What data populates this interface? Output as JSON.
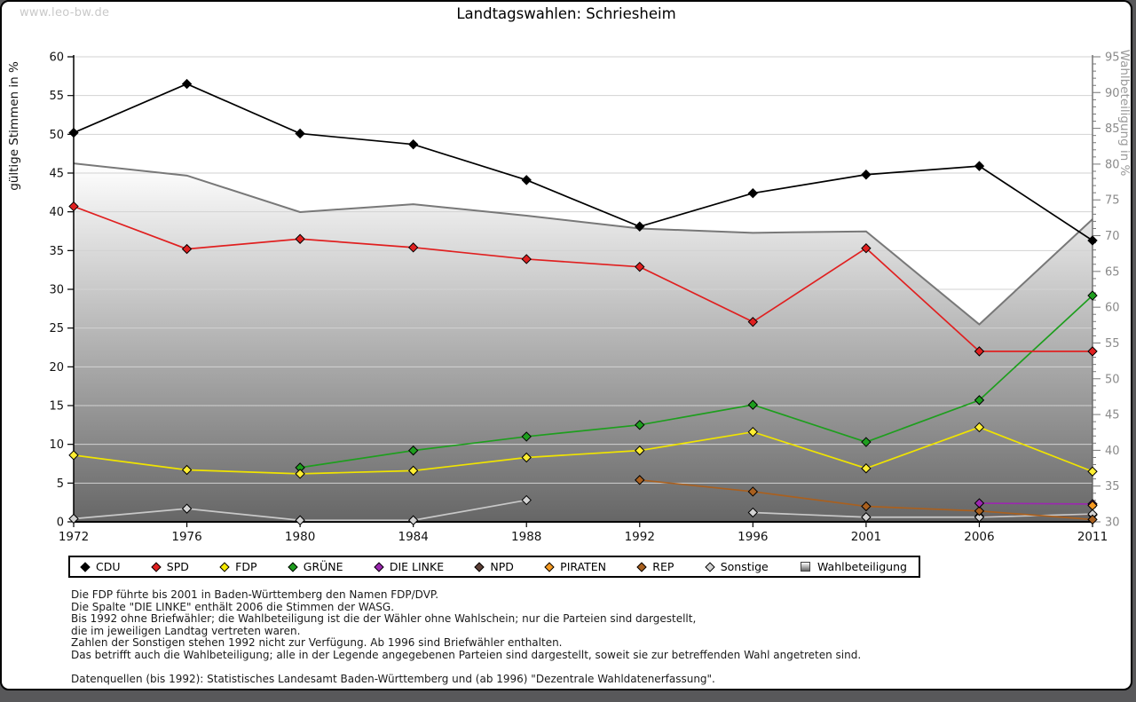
{
  "watermark": "www.leo-bw.de",
  "title": "Landtagswahlen: Schriesheim",
  "legend": {
    "items": [
      {
        "label": "CDU",
        "marker": "diamond",
        "color": "#000000"
      },
      {
        "label": "SPD",
        "marker": "diamond",
        "color": "#e02020"
      },
      {
        "label": "FDP",
        "marker": "diamond",
        "color": "#f6ea00"
      },
      {
        "label": "GRÜNE",
        "marker": "diamond",
        "color": "#1e9e1e"
      },
      {
        "label": "DIE LINKE",
        "marker": "diamond",
        "color": "#9c27b0"
      },
      {
        "label": "NPD",
        "marker": "diamond",
        "color": "#5d4037"
      },
      {
        "label": "PIRATEN",
        "marker": "diamond",
        "color": "#f59a23"
      },
      {
        "label": "REP",
        "marker": "diamond",
        "color": "#a9601f"
      },
      {
        "label": "Sonstige",
        "marker": "diamond",
        "color": "#d3d3d3"
      },
      {
        "label": "Wahlbeteiligung",
        "marker": "square",
        "color": "gradient"
      }
    ]
  },
  "footnotes": [
    "Die FDP führte bis 2001 in Baden-Württemberg den Namen FDP/DVP.",
    "Die Spalte \"DIE LINKE\" enthält 2006 die Stimmen der WASG.",
    "Bis 1992 ohne Briefwähler; die Wahlbeteiligung ist die der Wähler ohne Wahlschein; nur die Parteien sind dargestellt,",
    "die im jeweiligen Landtag vertreten waren.",
    "Zahlen der Sonstigen stehen 1992 nicht zur Verfügung. Ab 1996 sind Briefwähler enthalten.",
    "Das betrifft auch die Wahlbeteiligung; alle in der Legende angegebenen Parteien sind dargestellt, soweit sie zur betreffenden Wahl angetreten sind."
  ],
  "source": "Datenquellen (bis 1992): Statistisches Landesamt Baden-Württemberg und (ab 1996) \"Dezentrale Wahldatenerfassung\".",
  "chart_data": {
    "type": "line",
    "categories": [
      "1972",
      "1976",
      "1980",
      "1984",
      "1988",
      "1992",
      "1996",
      "2001",
      "2006",
      "2011"
    ],
    "left_axis": {
      "label": "gültige Stimmen in %",
      "min": 0,
      "max": 60,
      "tick_step": 5
    },
    "right_axis": {
      "label": "Wahlbeteiligung in %",
      "min": 30,
      "max": 95,
      "tick_step": 5,
      "minor_step": 1
    },
    "grid": {
      "on": true,
      "at_left_values": [
        5,
        10,
        15,
        20,
        25,
        30,
        35,
        40,
        45,
        50,
        55,
        60
      ]
    },
    "legend_position": "bottom",
    "series": [
      {
        "name": "Wahlbeteiligung",
        "kind": "area",
        "axis": "right",
        "line_color": "#787878",
        "fill_top": "#ffffff",
        "fill_bottom": "#666666",
        "values": [
          80.1,
          78.4,
          73.3,
          74.4,
          72.8,
          71.0,
          70.4,
          70.6,
          57.6,
          72.3
        ]
      },
      {
        "name": "NPD",
        "kind": "line",
        "axis": "left",
        "line_color": "#5d4037",
        "marker_fill": "#5d4037",
        "values": [
          null,
          null,
          null,
          null,
          null,
          null,
          null,
          null,
          0.7,
          0.9
        ]
      },
      {
        "name": "Sonstige",
        "kind": "line",
        "axis": "left",
        "line_color": "#c8c8c8",
        "marker_fill": "#d3d3d3",
        "values": [
          0.4,
          1.7,
          0.2,
          0.2,
          2.8,
          null,
          1.2,
          0.6,
          0.6,
          1.0
        ]
      },
      {
        "name": "REP",
        "kind": "line",
        "axis": "left",
        "line_color": "#a9601f",
        "marker_fill": "#a9601f",
        "values": [
          null,
          null,
          null,
          null,
          null,
          5.4,
          3.9,
          2.0,
          1.4,
          0.3
        ]
      },
      {
        "name": "DIE LINKE",
        "kind": "line",
        "axis": "left",
        "line_color": "#9c27b0",
        "marker_fill": "#9c27b0",
        "values": [
          null,
          null,
          null,
          null,
          null,
          null,
          null,
          null,
          2.4,
          2.3
        ]
      },
      {
        "name": "PIRATEN",
        "kind": "line",
        "axis": "left",
        "line_color": "#f59a23",
        "marker_fill": "#f59a23",
        "values": [
          null,
          null,
          null,
          null,
          null,
          null,
          null,
          null,
          null,
          2.1
        ]
      },
      {
        "name": "GRÜNE",
        "kind": "line",
        "axis": "left",
        "line_color": "#1e9e1e",
        "marker_fill": "#1e9e1e",
        "values": [
          null,
          null,
          7.0,
          9.2,
          11.0,
          12.5,
          15.1,
          10.3,
          15.7,
          29.2
        ]
      },
      {
        "name": "FDP",
        "kind": "line",
        "axis": "left",
        "line_color": "#f0e400",
        "marker_fill": "#ffee33",
        "values": [
          8.6,
          6.7,
          6.2,
          6.6,
          8.3,
          9.2,
          11.6,
          6.9,
          12.2,
          6.5
        ]
      },
      {
        "name": "SPD",
        "kind": "line",
        "axis": "left",
        "line_color": "#e02020",
        "marker_fill": "#e02020",
        "values": [
          40.7,
          35.2,
          36.5,
          35.4,
          33.9,
          32.9,
          25.8,
          35.3,
          22.0,
          22.0
        ]
      },
      {
        "name": "CDU",
        "kind": "line",
        "axis": "left",
        "line_color": "#000000",
        "marker_fill": "#000000",
        "values": [
          50.2,
          56.5,
          50.1,
          48.7,
          44.1,
          38.1,
          42.4,
          44.8,
          45.9,
          36.3
        ]
      }
    ]
  }
}
